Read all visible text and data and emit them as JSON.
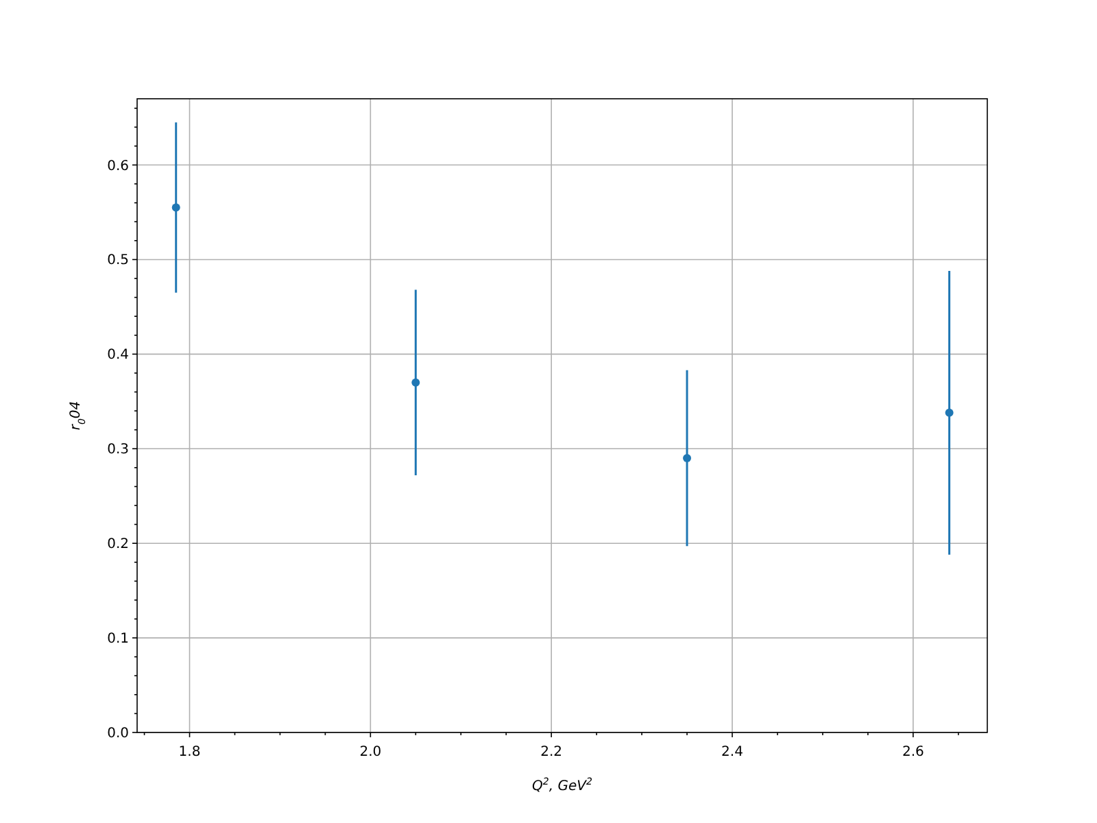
{
  "chart_data": {
    "type": "scatter",
    "xlabel": "Q$^{2}$, GeV$^{2}$",
    "ylabel": "r$_{0}$04",
    "x": [
      1.785,
      2.05,
      2.35,
      2.64
    ],
    "series": [
      {
        "color": "#1f77b4",
        "values": [
          0.555,
          0.37,
          0.29,
          0.338
        ],
        "errors": [
          0.09,
          0.098,
          0.093,
          0.15
        ]
      }
    ],
    "xlim": [
      1.742,
      2.682
    ],
    "ylim": [
      0,
      0.67
    ],
    "xticks": [
      {
        "value": 1.75,
        "label": null
      },
      {
        "value": 1.8,
        "label": "1.8"
      },
      {
        "value": 1.85,
        "label": null
      },
      {
        "value": 1.9,
        "label": null
      },
      {
        "value": 1.95,
        "label": null
      },
      {
        "value": 2.0,
        "label": "2.0"
      },
      {
        "value": 2.05,
        "label": null
      },
      {
        "value": 2.1,
        "label": null
      },
      {
        "value": 2.15,
        "label": null
      },
      {
        "value": 2.2,
        "label": "2.2"
      },
      {
        "value": 2.25,
        "label": null
      },
      {
        "value": 2.3,
        "label": null
      },
      {
        "value": 2.35,
        "label": null
      },
      {
        "value": 2.4,
        "label": "2.4"
      },
      {
        "value": 2.45,
        "label": null
      },
      {
        "value": 2.5,
        "label": null
      },
      {
        "value": 2.55,
        "label": null
      },
      {
        "value": 2.6,
        "label": "2.6"
      },
      {
        "value": 2.65,
        "label": null
      }
    ],
    "yticks": [
      {
        "value": 0,
        "label": "0.0"
      },
      {
        "value": 0.02,
        "label": null
      },
      {
        "value": 0.04,
        "label": null
      },
      {
        "value": 0.06,
        "label": null
      },
      {
        "value": 0.08,
        "label": null
      },
      {
        "value": 0.1,
        "label": "0.1"
      },
      {
        "value": 0.12,
        "label": null
      },
      {
        "value": 0.14,
        "label": null
      },
      {
        "value": 0.16,
        "label": null
      },
      {
        "value": 0.18,
        "label": null
      },
      {
        "value": 0.2,
        "label": "0.2"
      },
      {
        "value": 0.22,
        "label": null
      },
      {
        "value": 0.24,
        "label": null
      },
      {
        "value": 0.26,
        "label": null
      },
      {
        "value": 0.28,
        "label": null
      },
      {
        "value": 0.3,
        "label": "0.3"
      },
      {
        "value": 0.32,
        "label": null
      },
      {
        "value": 0.34,
        "label": null
      },
      {
        "value": 0.36,
        "label": null
      },
      {
        "value": 0.38,
        "label": null
      },
      {
        "value": 0.4,
        "label": "0.4"
      },
      {
        "value": 0.42,
        "label": null
      },
      {
        "value": 0.44,
        "label": null
      },
      {
        "value": 0.46,
        "label": null
      },
      {
        "value": 0.48,
        "label": null
      },
      {
        "value": 0.5,
        "label": "0.5"
      },
      {
        "value": 0.52,
        "label": null
      },
      {
        "value": 0.54,
        "label": null
      },
      {
        "value": 0.56,
        "label": null
      },
      {
        "value": 0.58,
        "label": null
      },
      {
        "value": 0.6,
        "label": "0.6"
      },
      {
        "value": 0.62,
        "label": null
      },
      {
        "value": 0.64,
        "label": null
      },
      {
        "value": 0.66,
        "label": null
      }
    ],
    "grid": true,
    "marker": "circle"
  }
}
